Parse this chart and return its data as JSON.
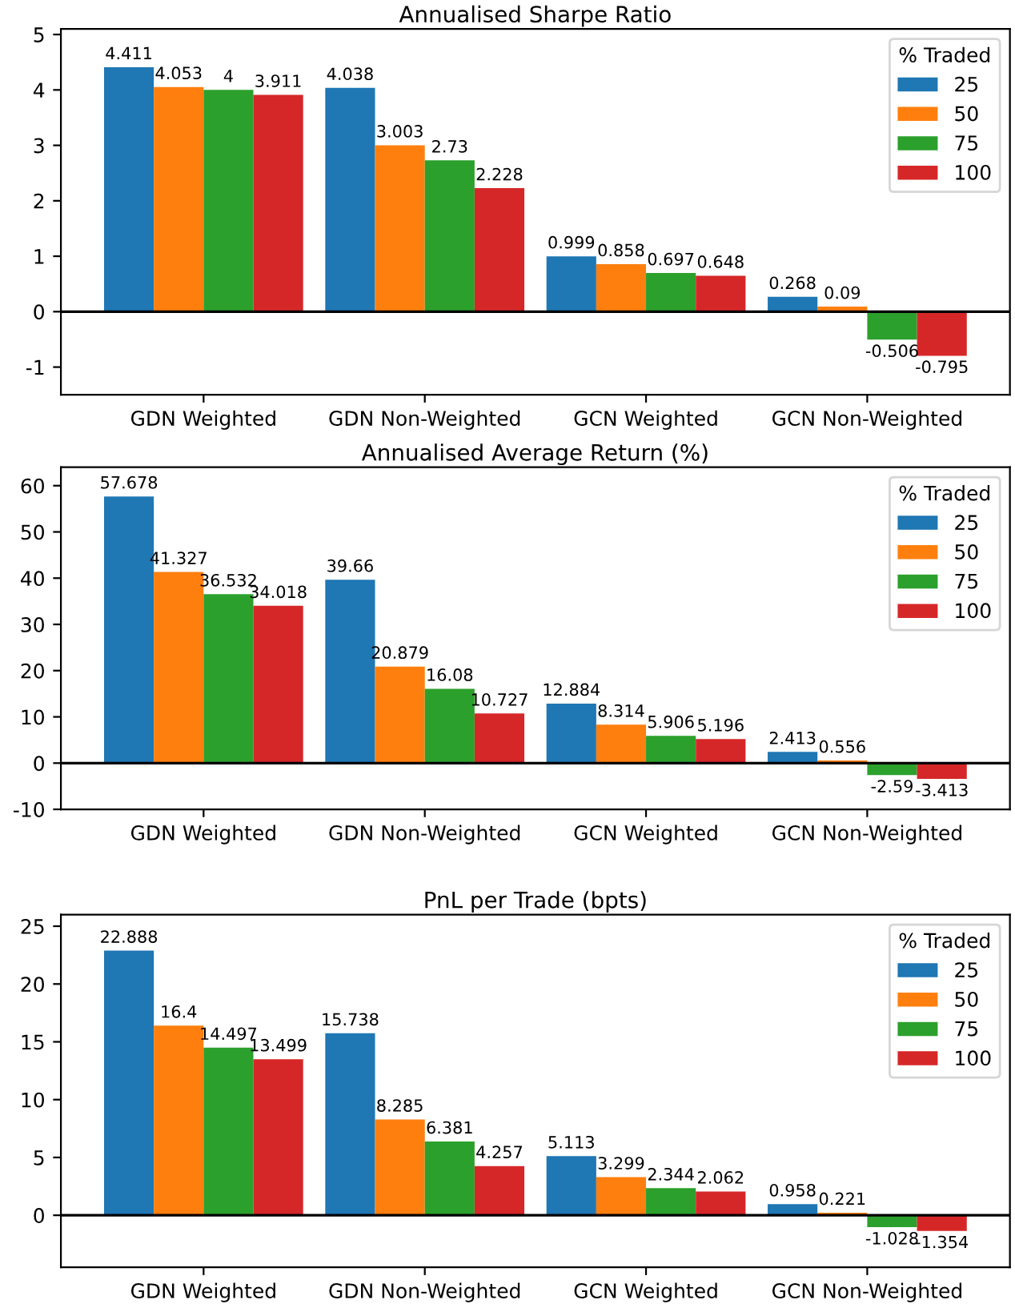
{
  "chart_data": [
    {
      "type": "bar",
      "title": "Annualised Sharpe Ratio",
      "categories": [
        "GDN Weighted",
        "GDN Non-Weighted",
        "GCN Weighted",
        "GCN Non-Weighted"
      ],
      "legend_title": "% Traded",
      "legend": "top right",
      "data_labels": true,
      "grid": false,
      "ylim": [
        -1.5,
        5.1
      ],
      "yticks": [
        -1,
        0,
        1,
        2,
        3,
        4,
        5
      ],
      "ref_lines": [
        {
          "axis": "y",
          "value": 0,
          "color": "#000000"
        }
      ],
      "series": [
        {
          "name": "25",
          "color": "#1f77b4",
          "values": [
            4.411,
            4.038,
            0.999,
            0.268
          ]
        },
        {
          "name": "50",
          "color": "#ff7f0e",
          "values": [
            4.053,
            3.003,
            0.858,
            0.09
          ]
        },
        {
          "name": "75",
          "color": "#2ca02c",
          "values": [
            4,
            2.73,
            0.697,
            -0.506
          ]
        },
        {
          "name": "100",
          "color": "#d62728",
          "values": [
            3.911,
            2.228,
            0.648,
            -0.795
          ]
        }
      ]
    },
    {
      "type": "bar",
      "title": "Annualised Average Return (%)",
      "categories": [
        "GDN Weighted",
        "GDN Non-Weighted",
        "GCN Weighted",
        "GCN Non-Weighted"
      ],
      "legend_title": "% Traded",
      "legend": "top right",
      "data_labels": true,
      "grid": false,
      "ylim": [
        -10,
        64
      ],
      "yticks": [
        -10,
        0,
        10,
        20,
        30,
        40,
        50,
        60
      ],
      "ref_lines": [
        {
          "axis": "y",
          "value": 0,
          "color": "#000000"
        }
      ],
      "series": [
        {
          "name": "25",
          "color": "#1f77b4",
          "values": [
            57.678,
            39.66,
            12.884,
            2.413
          ]
        },
        {
          "name": "50",
          "color": "#ff7f0e",
          "values": [
            41.327,
            20.879,
            8.314,
            0.556
          ]
        },
        {
          "name": "75",
          "color": "#2ca02c",
          "values": [
            36.532,
            16.08,
            5.906,
            -2.59
          ]
        },
        {
          "name": "100",
          "color": "#d62728",
          "values": [
            34.018,
            10.727,
            5.196,
            -3.413
          ]
        }
      ]
    },
    {
      "type": "bar",
      "title": "PnL per Trade (bpts)",
      "categories": [
        "GDN Weighted",
        "GDN Non-Weighted",
        "GCN Weighted",
        "GCN Non-Weighted"
      ],
      "legend_title": "% Traded",
      "legend": "top right",
      "data_labels": true,
      "grid": false,
      "ylim": [
        -4.5,
        26
      ],
      "yticks": [
        0,
        5,
        10,
        15,
        20,
        25
      ],
      "ref_lines": [
        {
          "axis": "y",
          "value": 0,
          "color": "#000000"
        }
      ],
      "series": [
        {
          "name": "25",
          "color": "#1f77b4",
          "values": [
            22.888,
            15.738,
            5.113,
            0.958
          ]
        },
        {
          "name": "50",
          "color": "#ff7f0e",
          "values": [
            16.4,
            8.285,
            3.299,
            0.221
          ]
        },
        {
          "name": "75",
          "color": "#2ca02c",
          "values": [
            14.497,
            6.381,
            2.344,
            -1.028
          ]
        },
        {
          "name": "100",
          "color": "#d62728",
          "values": [
            13.499,
            4.257,
            2.062,
            -1.354
          ]
        }
      ]
    }
  ]
}
